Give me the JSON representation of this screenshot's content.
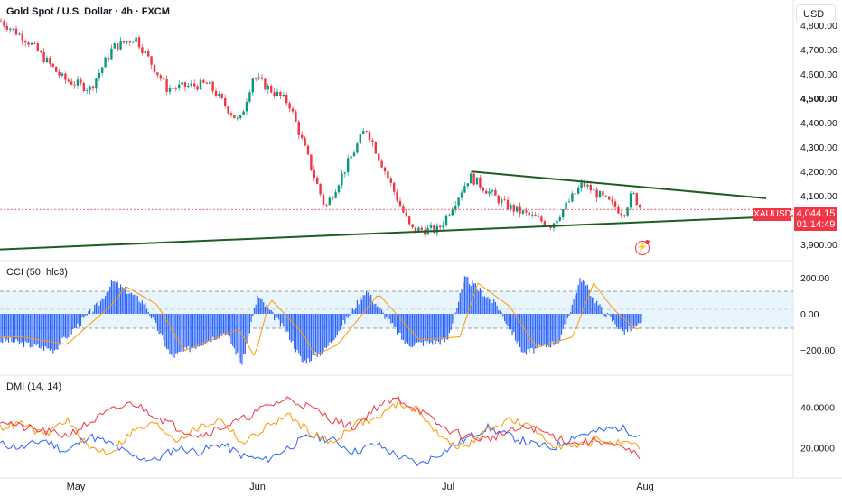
{
  "header": {
    "title": "Gold Spot / U.S. Dollar · 4h · FXCM",
    "currency": "USD"
  },
  "price_pane": {
    "symbol": "XAUUSD",
    "last_price": "4,044.15",
    "countdown": "01:14:49",
    "y_ticks": [
      "4,800.00",
      "4,700.00",
      "4,600.00",
      "4,500.00",
      "4,400.00",
      "4,300.00",
      "4,200.00",
      "4,100.00",
      "3,900.00"
    ],
    "icon": "flash-icon"
  },
  "cci_pane": {
    "label": "CCI (50, hlc3)",
    "y_ticks": [
      "200.00",
      "0.00",
      "−200.00"
    ]
  },
  "dmi_pane": {
    "label": "DMI (14, 14)",
    "y_ticks": [
      "40.0000",
      "20.0000"
    ]
  },
  "x_axis": {
    "ticks": [
      "May",
      "Jun",
      "Jul",
      "Aug"
    ]
  },
  "colors": {
    "up": "#089981",
    "down": "#f23645",
    "trendline": "#1b5e20",
    "cci_bar": "#2962ff",
    "cci_ma": "#ff9800",
    "dmi_plus": "#2962ff",
    "dmi_minus": "#ff9800",
    "adx": "#f23645",
    "band": "#e3f2fd"
  },
  "chart_data": [
    {
      "type": "candlestick",
      "title": "Gold Spot / U.S. Dollar · 4h · FXCM",
      "x": [
        "May",
        "Jun",
        "Jul",
        "Aug"
      ],
      "y_axis_ticks": [
        4800,
        4700,
        4600,
        4500,
        4400,
        4300,
        4200,
        4100,
        3900
      ],
      "ylim": [
        3860,
        4860
      ],
      "close_path": [
        {
          "x": "start",
          "y": 4820
        },
        {
          "x": 30,
          "y": 4740
        },
        {
          "x": 70,
          "y": 4580
        },
        {
          "x": 100,
          "y": 4540
        },
        {
          "x": 125,
          "y": 4710
        },
        {
          "x": 150,
          "y": 4750
        },
        {
          "x": 185,
          "y": 4540
        },
        {
          "x": 230,
          "y": 4560
        },
        {
          "x": 265,
          "y": 4400
        },
        {
          "x": 280,
          "y": 4590
        },
        {
          "x": 320,
          "y": 4480
        },
        {
          "x": 360,
          "y": 4050
        },
        {
          "x": 405,
          "y": 4380
        },
        {
          "x": 455,
          "y": 3960
        },
        {
          "x": 485,
          "y": 3960
        },
        {
          "x": 520,
          "y": 4180
        },
        {
          "x": 560,
          "y": 4060
        },
        {
          "x": 610,
          "y": 3980
        },
        {
          "x": 645,
          "y": 4150
        },
        {
          "x": 690,
          "y": 4030
        },
        {
          "x": 700,
          "y": 4110
        },
        {
          "x": 710,
          "y": 4044.15
        }
      ],
      "last_price": 4044.15,
      "trendlines": [
        {
          "name": "upper",
          "from": {
            "x": 522,
            "y": 4200
          },
          "to": {
            "x": 848,
            "y": 4090
          }
        },
        {
          "name": "lower",
          "from": {
            "x": 0,
            "y": 3880
          },
          "to": {
            "x": 878,
            "y": 4018
          }
        }
      ]
    },
    {
      "type": "bar",
      "title": "CCI (50, hlc3)",
      "y_axis_ticks": [
        200,
        0,
        -200
      ],
      "ylim": [
        -300,
        260
      ],
      "bands": [
        100,
        -100
      ],
      "series_shape": [
        {
          "x": 10,
          "y": -150
        },
        {
          "x": 60,
          "y": -200
        },
        {
          "x": 110,
          "y": 60
        },
        {
          "x": 125,
          "y": 180
        },
        {
          "x": 160,
          "y": 60
        },
        {
          "x": 190,
          "y": -240
        },
        {
          "x": 250,
          "y": -100
        },
        {
          "x": 268,
          "y": -280
        },
        {
          "x": 285,
          "y": 100
        },
        {
          "x": 320,
          "y": -120
        },
        {
          "x": 335,
          "y": -270
        },
        {
          "x": 360,
          "y": -200
        },
        {
          "x": 405,
          "y": 130
        },
        {
          "x": 450,
          "y": -170
        },
        {
          "x": 495,
          "y": -150
        },
        {
          "x": 515,
          "y": 200
        },
        {
          "x": 550,
          "y": 50
        },
        {
          "x": 580,
          "y": -220
        },
        {
          "x": 620,
          "y": -150
        },
        {
          "x": 643,
          "y": 200
        },
        {
          "x": 665,
          "y": 30
        },
        {
          "x": 690,
          "y": -100
        },
        {
          "x": 710,
          "y": -60
        }
      ]
    },
    {
      "type": "line",
      "title": "DMI (14, 14)",
      "y_axis_ticks": [
        40,
        20
      ],
      "ylim": [
        8,
        52
      ],
      "series": [
        {
          "name": "plus",
          "values": [
            22,
            20,
            24,
            18,
            26,
            22,
            16,
            14,
            20,
            18,
            22,
            16,
            14,
            20,
            26,
            24,
            18,
            22,
            16,
            12,
            18,
            24,
            30,
            26,
            22,
            20,
            26,
            28,
            30,
            26
          ]
        },
        {
          "name": "minus",
          "values": [
            30,
            32,
            26,
            34,
            20,
            18,
            28,
            32,
            24,
            30,
            34,
            22,
            30,
            36,
            28,
            22,
            32,
            34,
            42,
            38,
            24,
            20,
            28,
            34,
            30,
            22,
            20,
            24,
            22,
            20
          ]
        },
        {
          "name": "adx",
          "values": [
            34,
            30,
            28,
            26,
            32,
            38,
            42,
            36,
            30,
            26,
            30,
            34,
            40,
            44,
            40,
            34,
            30,
            40,
            44,
            38,
            30,
            26,
            24,
            28,
            30,
            26,
            22,
            24,
            20,
            16
          ]
        }
      ]
    }
  ]
}
